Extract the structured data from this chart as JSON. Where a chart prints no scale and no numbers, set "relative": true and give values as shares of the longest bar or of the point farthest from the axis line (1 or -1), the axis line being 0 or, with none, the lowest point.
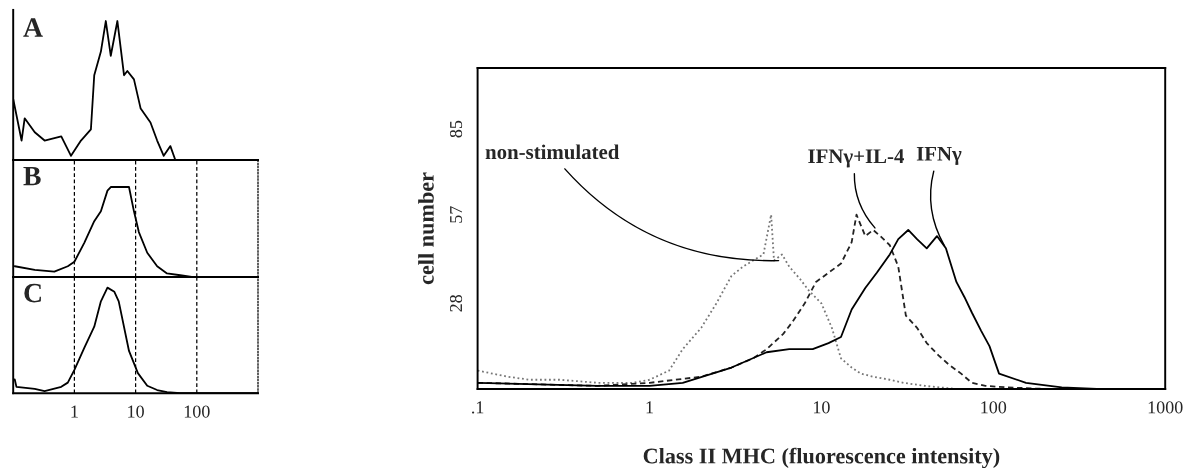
{
  "chart_data": [
    {
      "type": "line",
      "title": "A",
      "relative": true,
      "log": "x",
      "xlim": [
        0.1,
        1000
      ],
      "xticks": [
        1,
        10,
        100
      ],
      "tick_labels": false,
      "grid": false,
      "legend": false,
      "marker": "none",
      "series": [
        {
          "color": "#000000",
          "line_style": "solid",
          "x": [
            0.1,
            0.137,
            0.154,
            0.225,
            0.326,
            0.61,
            0.88,
            1.28,
            1.86,
            2.11,
            2.71,
            3.26,
            3.93,
            5.04,
            6.47,
            7.33,
            9.4,
            12.1,
            17.5,
            22.5,
            28.8,
            37,
            44.6,
            1000
          ],
          "values": [
            0.44,
            0.14,
            0.3,
            0.2,
            0.14,
            0.17,
            0.03,
            0.14,
            0.22,
            0.61,
            0.78,
            1,
            0.75,
            1,
            0.61,
            0.64,
            0.58,
            0.37,
            0.27,
            0.14,
            0.03,
            0.1,
            0,
            0
          ]
        }
      ]
    },
    {
      "type": "line",
      "title": "B",
      "relative": true,
      "log": "x",
      "xlim": [
        0.1,
        1000
      ],
      "xticks": [
        1,
        10,
        100
      ],
      "tick_labels": false,
      "grid": "x",
      "legend": false,
      "marker": "none",
      "series": [
        {
          "color": "#000000",
          "line_style": "solid",
          "x": [
            0.106,
            0.225,
            0.47,
            0.78,
            1,
            1.45,
            2.11,
            2.71,
            3.47,
            3.93,
            7.8,
            9.4,
            11.3,
            15.5,
            22.5,
            32.6,
            53.7,
            88,
            1000
          ],
          "values": [
            0.12,
            0.08,
            0.06,
            0.12,
            0.17,
            0.38,
            0.62,
            0.73,
            0.96,
            1,
            1,
            0.73,
            0.5,
            0.27,
            0.12,
            0.04,
            0.02,
            0,
            0
          ]
        }
      ]
    },
    {
      "type": "line",
      "title": "C",
      "relative": true,
      "log": "x",
      "xlim": [
        0.1,
        1000
      ],
      "xticks": [
        1,
        10,
        100
      ],
      "tick_labels": "x",
      "grid": "x",
      "legend": false,
      "marker": "none",
      "series": [
        {
          "color": "#000000",
          "line_style": "solid",
          "x": [
            0.106,
            0.113,
            0.225,
            0.326,
            0.61,
            0.78,
            1,
            1.45,
            2.11,
            2.71,
            3.47,
            4.5,
            5.3,
            7.8,
            10.9,
            15.5,
            22.5,
            32.6,
            53.7,
            1000
          ],
          "values": [
            0.13,
            0.06,
            0.04,
            0.02,
            0.06,
            0.1,
            0.22,
            0.43,
            0.63,
            0.87,
            1,
            0.96,
            0.87,
            0.4,
            0.19,
            0.07,
            0.03,
            0.01,
            0,
            0
          ]
        }
      ]
    },
    {
      "type": "line",
      "xlabel": "Class II MHC (fluorescence intensity)",
      "ylabel": "cell number",
      "log": "x",
      "xlim": [
        0.1,
        1000
      ],
      "ylim": [
        0,
        105
      ],
      "xticks": [
        {
          "value": 0.1,
          "label": ".1"
        },
        1,
        10,
        100,
        1000
      ],
      "yticks": [
        28,
        57,
        85
      ],
      "grid": false,
      "legend": false,
      "marker": "none",
      "annotations": [
        {
          "text": "non-stimulated",
          "x": 5.85,
          "y": 42
        },
        {
          "text": "IFNγ+IL-4",
          "x": 21,
          "y": 52
        },
        {
          "text": "IFNγ",
          "x": 53,
          "y": 46
        }
      ],
      "series": [
        {
          "color": "#777777",
          "line_style": "dotted",
          "x": [
            0.1,
            0.15,
            0.2,
            0.3,
            0.5,
            0.8,
            1,
            1.3,
            1.56,
            2,
            2.45,
            3,
            3.5,
            4,
            4.6,
            5.1,
            5.3,
            5.9,
            6.5,
            7.5,
            8.5,
            10,
            11.5,
            13,
            15,
            17,
            20,
            25,
            30,
            40,
            60
          ],
          "values": [
            6,
            4,
            3,
            3,
            2,
            2,
            3,
            6,
            13,
            20,
            28,
            37,
            40,
            42,
            44,
            57,
            42,
            44,
            40,
            36,
            32,
            28,
            20,
            10,
            7,
            5,
            4,
            3,
            2,
            1,
            0
          ]
        },
        {
          "color": "#222222",
          "line_style": "dashed",
          "x": [
            0.1,
            0.5,
            1,
            2,
            3,
            4,
            4.8,
            6,
            6.8,
            8,
            9.3,
            11,
            13,
            15,
            16,
            18,
            20,
            22,
            25,
            28,
            31,
            36,
            41,
            48,
            55,
            65,
            75,
            90,
            120,
            200
          ],
          "values": [
            2,
            1,
            2,
            4,
            7,
            10,
            13,
            18,
            22,
            28,
            35,
            38,
            41,
            48,
            57,
            50,
            52,
            50,
            47,
            40,
            24,
            20,
            15,
            11,
            8,
            5,
            2,
            1,
            0.5,
            0
          ]
        },
        {
          "color": "#000000",
          "line_style": "solid",
          "x": [
            0.1,
            0.5,
            1,
            1.56,
            3,
            4.8,
            6.5,
            8.9,
            11,
            13,
            15,
            18,
            21,
            25,
            28,
            32,
            36,
            41,
            47,
            53,
            61,
            68,
            75,
            85,
            95,
            108,
            155,
            250,
            400
          ],
          "values": [
            2,
            1,
            1,
            2,
            7,
            12,
            13,
            13,
            15,
            17,
            26,
            33,
            38,
            44,
            49,
            52,
            49,
            46,
            50,
            46,
            35,
            30,
            25,
            19,
            14,
            5,
            2,
            0.5,
            0
          ]
        }
      ]
    }
  ]
}
